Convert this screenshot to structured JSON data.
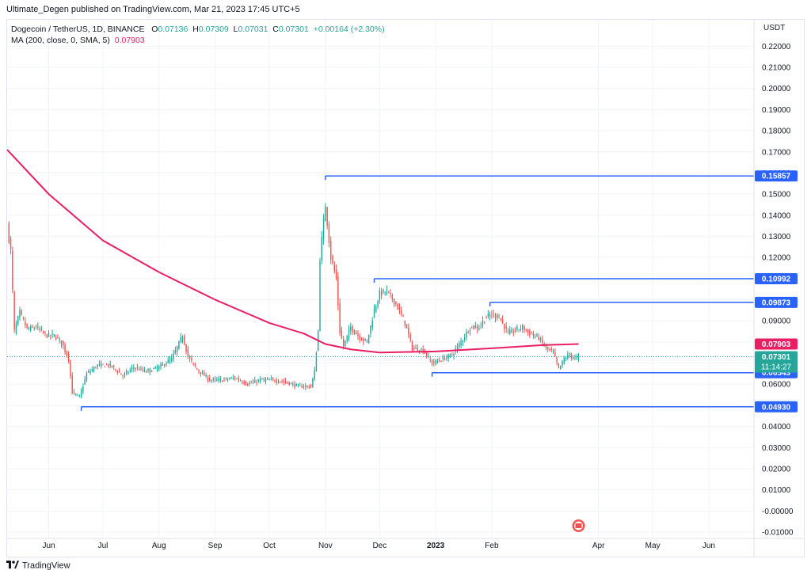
{
  "header": {
    "published": "Ultimate_Degen published on TradingView.com, Mar 21, 2023 17:45 UTC+5"
  },
  "legend": {
    "symbol": "Dogecoin / TetherUS, 1D, BINANCE",
    "o_label": "O",
    "o": "0.07136",
    "h_label": "H",
    "h": "0.07309",
    "l_label": "L",
    "l": "0.07031",
    "c_label": "C",
    "c": "0.07301",
    "change": "+0.00164 (+2.30%)",
    "ma_label": "MA (200, close, 0, SMA, 5)",
    "ma_value": "0.07903"
  },
  "footer": {
    "brand": "TradingView"
  },
  "colors": {
    "up": "#26a69a",
    "down": "#ef5350",
    "ma": "#e91e63",
    "hline": "#2962ff",
    "grid": "#f0f3fa",
    "axis_text": "#131722"
  },
  "chart_data": {
    "type": "candlestick",
    "currency_label": "USDT",
    "ylim": [
      -0.013,
      0.2325
    ],
    "y_ticks": [
      "0.22000",
      "0.21000",
      "0.20000",
      "0.19000",
      "0.18000",
      "0.17000",
      "0.16000",
      "0.15000",
      "0.14000",
      "0.13000",
      "0.12000",
      "0.11000",
      "0.10000",
      "0.09000",
      "0.08000",
      "0.07000",
      "0.06000",
      "0.05000",
      "0.04000",
      "0.03000",
      "0.02000",
      "0.01000",
      "-0.00000",
      "-0.01000"
    ],
    "y_tick_values": [
      0.22,
      0.21,
      0.2,
      0.19,
      0.18,
      0.17,
      0.16,
      0.15,
      0.14,
      0.13,
      0.12,
      0.11,
      0.1,
      0.09,
      0.08,
      0.07,
      0.06,
      0.05,
      0.04,
      0.03,
      0.02,
      0.01,
      0.0,
      -0.01
    ],
    "x_start": "2022-05-09",
    "x_end": "2023-06-26",
    "x_ticks": [
      {
        "label": "Jun",
        "date": "2022-06-01"
      },
      {
        "label": "Jul",
        "date": "2022-07-01"
      },
      {
        "label": "Aug",
        "date": "2022-08-01"
      },
      {
        "label": "Sep",
        "date": "2022-09-01"
      },
      {
        "label": "Oct",
        "date": "2022-10-01"
      },
      {
        "label": "Nov",
        "date": "2022-11-01"
      },
      {
        "label": "Dec",
        "date": "2022-12-01"
      },
      {
        "label": "2023",
        "date": "2023-01-01"
      },
      {
        "label": "Feb",
        "date": "2023-02-01"
      },
      {
        "label": "Apr",
        "date": "2023-04-01"
      },
      {
        "label": "May",
        "date": "2023-05-01"
      },
      {
        "label": "Jun",
        "date": "2023-06-01"
      }
    ],
    "price_path": [
      [
        "2022-05-09",
        0.135
      ],
      [
        "2022-05-11",
        0.123
      ],
      [
        "2022-05-13",
        0.085
      ],
      [
        "2022-05-16",
        0.094
      ],
      [
        "2022-05-20",
        0.086
      ],
      [
        "2022-05-25",
        0.087
      ],
      [
        "2022-05-31",
        0.083
      ],
      [
        "2022-06-04",
        0.083
      ],
      [
        "2022-06-08",
        0.08
      ],
      [
        "2022-06-12",
        0.072
      ],
      [
        "2022-06-14",
        0.056
      ],
      [
        "2022-06-18",
        0.054
      ],
      [
        "2022-06-22",
        0.065
      ],
      [
        "2022-06-28",
        0.069
      ],
      [
        "2022-07-05",
        0.069
      ],
      [
        "2022-07-12",
        0.064
      ],
      [
        "2022-07-18",
        0.068
      ],
      [
        "2022-07-25",
        0.066
      ],
      [
        "2022-08-01",
        0.068
      ],
      [
        "2022-08-08",
        0.072
      ],
      [
        "2022-08-14",
        0.083
      ],
      [
        "2022-08-17",
        0.073
      ],
      [
        "2022-08-22",
        0.067
      ],
      [
        "2022-08-29",
        0.062
      ],
      [
        "2022-09-05",
        0.062
      ],
      [
        "2022-09-12",
        0.063
      ],
      [
        "2022-09-19",
        0.06
      ],
      [
        "2022-09-26",
        0.062
      ],
      [
        "2022-10-03",
        0.062
      ],
      [
        "2022-10-10",
        0.061
      ],
      [
        "2022-10-17",
        0.059
      ],
      [
        "2022-10-24",
        0.059
      ],
      [
        "2022-10-26",
        0.066
      ],
      [
        "2022-10-28",
        0.085
      ],
      [
        "2022-10-29",
        0.12
      ],
      [
        "2022-11-01",
        0.145
      ],
      [
        "2022-11-04",
        0.12
      ],
      [
        "2022-11-07",
        0.11
      ],
      [
        "2022-11-09",
        0.085
      ],
      [
        "2022-11-11",
        0.078
      ],
      [
        "2022-11-15",
        0.087
      ],
      [
        "2022-11-20",
        0.082
      ],
      [
        "2022-11-24",
        0.08
      ],
      [
        "2022-11-28",
        0.095
      ],
      [
        "2022-12-01",
        0.103
      ],
      [
        "2022-12-05",
        0.104
      ],
      [
        "2022-12-10",
        0.098
      ],
      [
        "2022-12-15",
        0.089
      ],
      [
        "2022-12-19",
        0.077
      ],
      [
        "2022-12-25",
        0.076
      ],
      [
        "2022-12-30",
        0.07
      ],
      [
        "2023-01-05",
        0.072
      ],
      [
        "2023-01-10",
        0.074
      ],
      [
        "2023-01-15",
        0.08
      ],
      [
        "2023-01-20",
        0.087
      ],
      [
        "2023-01-25",
        0.087
      ],
      [
        "2023-01-28",
        0.091
      ],
      [
        "2023-02-01",
        0.093
      ],
      [
        "2023-02-05",
        0.092
      ],
      [
        "2023-02-10",
        0.084
      ],
      [
        "2023-02-15",
        0.086
      ],
      [
        "2023-02-18",
        0.087
      ],
      [
        "2023-02-22",
        0.084
      ],
      [
        "2023-02-27",
        0.082
      ],
      [
        "2023-03-03",
        0.077
      ],
      [
        "2023-03-07",
        0.075
      ],
      [
        "2023-03-10",
        0.067
      ],
      [
        "2023-03-13",
        0.072
      ],
      [
        "2023-03-16",
        0.074
      ],
      [
        "2023-03-19",
        0.072
      ],
      [
        "2023-03-21",
        0.07301
      ]
    ],
    "ma_path": [
      [
        "2022-05-09",
        0.171
      ],
      [
        "2022-06-01",
        0.15
      ],
      [
        "2022-07-01",
        0.128
      ],
      [
        "2022-08-01",
        0.113
      ],
      [
        "2022-09-01",
        0.1
      ],
      [
        "2022-10-01",
        0.089
      ],
      [
        "2022-10-20",
        0.084
      ],
      [
        "2022-11-01",
        0.079
      ],
      [
        "2022-11-15",
        0.0765
      ],
      [
        "2022-12-01",
        0.075
      ],
      [
        "2023-01-01",
        0.0755
      ],
      [
        "2023-02-01",
        0.077
      ],
      [
        "2023-03-01",
        0.0785
      ],
      [
        "2023-03-21",
        0.07903
      ]
    ],
    "horizontal_levels": [
      {
        "price": 0.15857,
        "label": "0.15857",
        "from": "2022-11-01"
      },
      {
        "price": 0.10992,
        "label": "0.10992",
        "from": "2022-11-28"
      },
      {
        "price": 0.09873,
        "label": "0.09873",
        "from": "2023-01-31"
      },
      {
        "price": 0.06543,
        "label": "0.06543",
        "from": "2022-12-30"
      },
      {
        "price": 0.0493,
        "label": "0.04930",
        "from": "2022-06-19"
      }
    ],
    "ma_value_label": "0.07903",
    "last_price_label": "0.07301",
    "countdown": "11:14:27",
    "last_price": 0.07301,
    "ma_last": 0.07903
  }
}
